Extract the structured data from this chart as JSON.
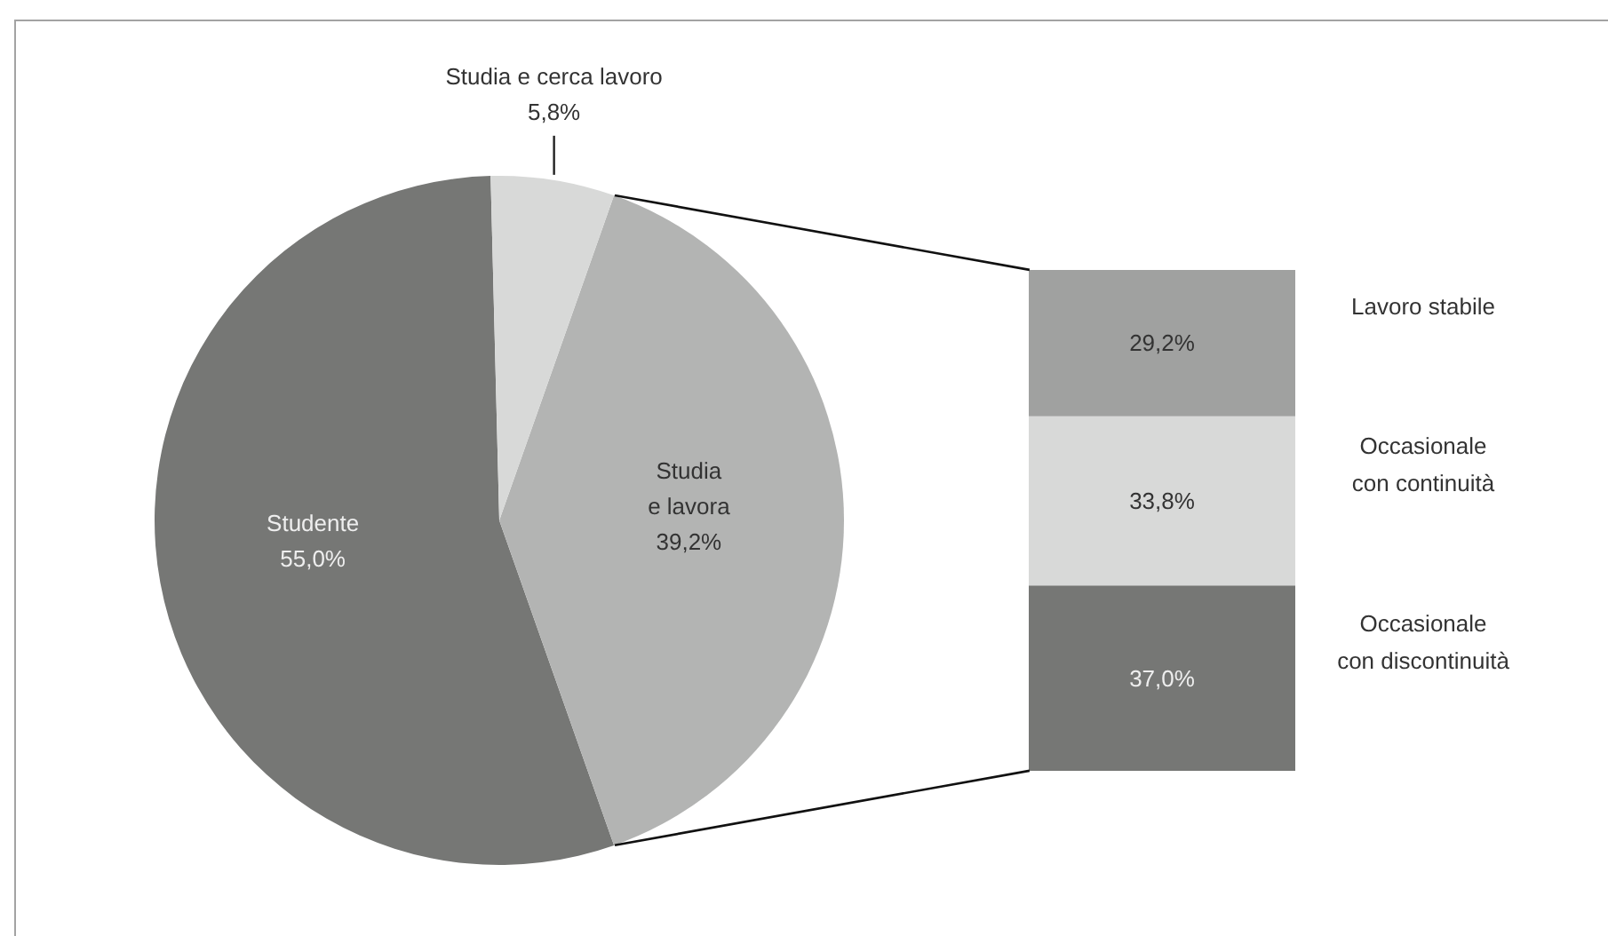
{
  "chart_data": [
    {
      "type": "pie",
      "categories": [
        "Studente",
        "Studia e lavora",
        "Studia e cerca lavoro"
      ],
      "values": [
        55.0,
        39.2,
        5.8
      ],
      "colors": [
        "#767775",
        "#b3b4b3",
        "#d8d9d8"
      ],
      "value_labels": [
        "55,0%",
        "39,2%",
        "5,8%"
      ]
    },
    {
      "type": "bar",
      "stacked": true,
      "categories": [
        null
      ],
      "series": [
        {
          "name": "Occasionale con discontinuità",
          "color": "#767775",
          "values": [
            37.0
          ],
          "value_labels": [
            "37,0%"
          ]
        },
        {
          "name": "Occasionale con continuità",
          "color": "#d8d9d8",
          "values": [
            33.8
          ],
          "value_labels": [
            "33,8%"
          ]
        },
        {
          "name": "Lavoro stabile",
          "color": "#a0a1a0",
          "values": [
            29.2
          ],
          "value_labels": [
            "29,2%"
          ]
        }
      ],
      "tick_labels": false
    }
  ]
}
